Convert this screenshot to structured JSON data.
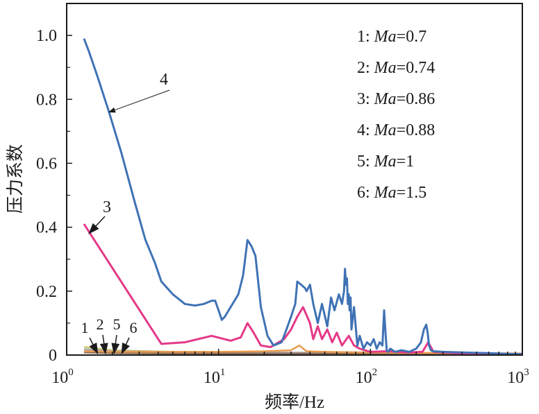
{
  "chart_data": {
    "type": "line",
    "xlabel": "频率/Hz",
    "ylabel": "压力系数",
    "x_scale": "log",
    "xlim": [
      1,
      1000
    ],
    "ylim": [
      0,
      1.1
    ],
    "x_ticks": [
      {
        "base": "10",
        "exp": "0"
      },
      {
        "base": "10",
        "exp": "1"
      },
      {
        "base": "10",
        "exp": "2"
      },
      {
        "base": "10",
        "exp": "3"
      }
    ],
    "y_ticks": [
      "0",
      "0.2",
      "0.4",
      "0.6",
      "0.8",
      "1.0"
    ],
    "legend_placement": "top-right",
    "legend": [
      {
        "id": "1",
        "prefix": "1: ",
        "var": "Ma",
        "value": "=0.7"
      },
      {
        "id": "2",
        "prefix": "2: ",
        "var": "Ma",
        "value": "=0.74"
      },
      {
        "id": "3",
        "prefix": "3: ",
        "var": "Ma",
        "value": "=0.86"
      },
      {
        "id": "4",
        "prefix": "4: ",
        "var": "Ma",
        "value": "=0.88"
      },
      {
        "id": "5",
        "prefix": "5: ",
        "var": "Ma",
        "value": "=1"
      },
      {
        "id": "6",
        "prefix": "6: ",
        "var": "Ma",
        "value": "=1.5"
      }
    ],
    "annotations": [
      {
        "label": "4",
        "target": [
          1.9,
          0.76
        ]
      },
      {
        "label": "3",
        "target": [
          1.4,
          0.38
        ]
      },
      {
        "label": "1",
        "target": [
          1.6,
          0.0
        ]
      },
      {
        "label": "2",
        "target": [
          1.8,
          0.0
        ]
      },
      {
        "label": "5",
        "target": [
          2.05,
          0.0
        ]
      },
      {
        "label": "6",
        "target": [
          2.3,
          0.0
        ]
      }
    ],
    "series": [
      {
        "id": "4",
        "color": "#3f72b5",
        "x": [
          1.3,
          1.4,
          1.6,
          1.9,
          2.3,
          2.8,
          3.3,
          3.8,
          4.2,
          5,
          6,
          7,
          8,
          9,
          9.5,
          10,
          10.5,
          11,
          12,
          13.5,
          14.5,
          15.5,
          16.5,
          17.5,
          19,
          21,
          23,
          26,
          28,
          30,
          32,
          33,
          35,
          37,
          38,
          40,
          42,
          45,
          48,
          52,
          55,
          58,
          62,
          65,
          67,
          68,
          69,
          70,
          71,
          72,
          73,
          74,
          75,
          78,
          82,
          85,
          90,
          95,
          100,
          105,
          110,
          115,
          120,
          123,
          126,
          128,
          131,
          135,
          145,
          160,
          180,
          200,
          215,
          225,
          233,
          238,
          243,
          250,
          260,
          300,
          400,
          600,
          800,
          1000
        ],
        "y": [
          0.99,
          0.95,
          0.87,
          0.76,
          0.63,
          0.48,
          0.36,
          0.29,
          0.23,
          0.19,
          0.16,
          0.155,
          0.16,
          0.17,
          0.17,
          0.14,
          0.11,
          0.12,
          0.15,
          0.19,
          0.25,
          0.36,
          0.34,
          0.31,
          0.15,
          0.06,
          0.03,
          0.04,
          0.08,
          0.12,
          0.16,
          0.23,
          0.22,
          0.21,
          0.2,
          0.22,
          0.16,
          0.1,
          0.16,
          0.09,
          0.18,
          0.14,
          0.19,
          0.16,
          0.2,
          0.27,
          0.22,
          0.24,
          0.16,
          0.19,
          0.14,
          0.18,
          0.08,
          0.15,
          0.03,
          0.06,
          0.02,
          0.04,
          0.03,
          0.05,
          0.02,
          0.04,
          0.03,
          0.14,
          0.06,
          0.015,
          0.01,
          0.02,
          0.01,
          0.015,
          0.01,
          0.02,
          0.04,
          0.08,
          0.095,
          0.07,
          0.03,
          0.015,
          0.012,
          0.01,
          0.008,
          0.006,
          0.004,
          0.003
        ]
      },
      {
        "id": "3",
        "color": "#e43888",
        "x": [
          1.3,
          4.2,
          6,
          9,
          12,
          14,
          15.5,
          17,
          19,
          22,
          27,
          30,
          33,
          36,
          40,
          42,
          45,
          48,
          52,
          56,
          60,
          65,
          72,
          78,
          85,
          100,
          130,
          180,
          220,
          240,
          260,
          400,
          1000
        ],
        "y": [
          0.41,
          0.035,
          0.04,
          0.06,
          0.045,
          0.055,
          0.1,
          0.07,
          0.03,
          0.025,
          0.05,
          0.08,
          0.12,
          0.15,
          0.1,
          0.05,
          0.09,
          0.05,
          0.08,
          0.04,
          0.07,
          0.03,
          0.06,
          0.03,
          0.02,
          0.01,
          0.012,
          0.008,
          0.01,
          0.04,
          0.01,
          0.005,
          0.003
        ]
      },
      {
        "id": "1",
        "color": "#c9c86f",
        "x": [
          1.3,
          2,
          5,
          20,
          100,
          1000
        ],
        "y": [
          0.025,
          0.015,
          0.01,
          0.008,
          0.006,
          0.004
        ]
      },
      {
        "id": "2",
        "color": "#a9a9b8",
        "x": [
          1.3,
          2,
          5,
          20,
          100,
          1000
        ],
        "y": [
          0.018,
          0.012,
          0.01,
          0.008,
          0.006,
          0.005
        ]
      },
      {
        "id": "5",
        "color": "#e89a4a",
        "x": [
          1.3,
          2,
          5,
          10,
          20,
          30,
          34,
          38,
          50,
          100,
          1000
        ],
        "y": [
          0.012,
          0.01,
          0.01,
          0.01,
          0.012,
          0.015,
          0.03,
          0.012,
          0.01,
          0.008,
          0.005
        ]
      },
      {
        "id": "6",
        "color": "#8a6a55",
        "x": [
          1.3,
          2,
          5,
          20,
          100,
          1000
        ],
        "y": [
          0.008,
          0.006,
          0.005,
          0.005,
          0.004,
          0.003
        ]
      }
    ]
  }
}
